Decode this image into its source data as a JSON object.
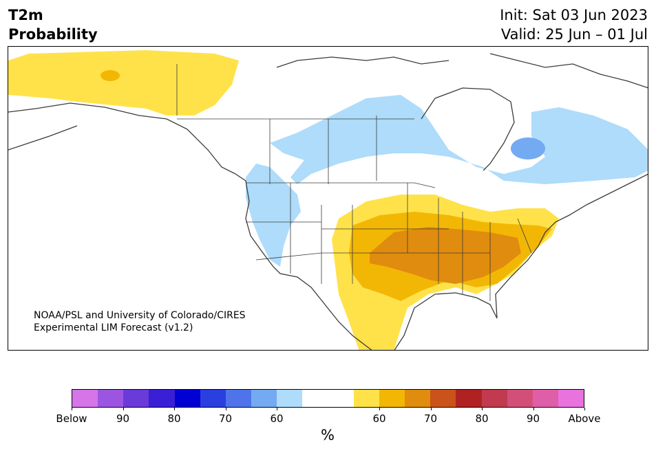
{
  "title": {
    "line1": "T2m",
    "line2": "Probability"
  },
  "header_right": {
    "init": "Init: Sat 03 Jun 2023",
    "valid": "Valid: 25 Jun – 01 Jul"
  },
  "credit": {
    "line1": "NOAA/PSL and University of Colorado/CIRES",
    "line2": "Experimental LIM Forecast (v1.2)"
  },
  "colorbar": {
    "unit": "%",
    "colors": [
      "#d575e8",
      "#9b55e0",
      "#6a3bd9",
      "#3a1fd6",
      "#0000d2",
      "#2a3fe0",
      "#4f74ea",
      "#74aaf2",
      "#aedcfa",
      "#ffffff",
      "#ffffff",
      "#ffe24a",
      "#f2b705",
      "#e08c0e",
      "#c9531a",
      "#b02222",
      "#c13a50",
      "#d24f79",
      "#de5fa8",
      "#e873de"
    ],
    "labels": [
      "Below",
      "90",
      "80",
      "70",
      "60",
      "60",
      "70",
      "80",
      "90",
      "Above"
    ]
  },
  "map": {
    "colors": {
      "above_50": "#ffe24a",
      "above_60": "#f2b705",
      "above_70": "#e08c0e",
      "below_60": "#aedcfa",
      "below_70": "#74aaf2",
      "coast": "#3a3a3a"
    }
  }
}
